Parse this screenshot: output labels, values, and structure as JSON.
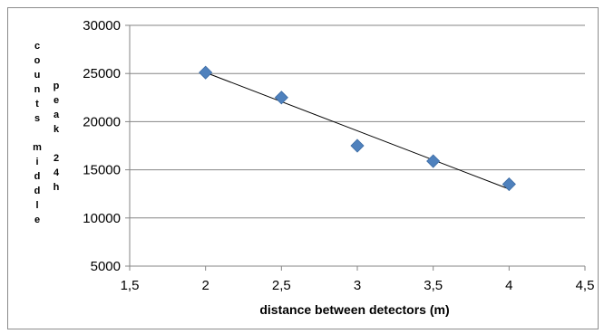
{
  "chart_data": {
    "type": "scatter",
    "title": "",
    "xlabel": "distance between detectors (m)",
    "ylabel_parts": [
      "counts middle",
      "peak 24h"
    ],
    "xlim": [
      1.5,
      4.5
    ],
    "ylim": [
      5000,
      30000
    ],
    "x_ticks": [
      "1,5",
      "2",
      "2,5",
      "3",
      "3,5",
      "4",
      "4,5"
    ],
    "y_ticks": [
      "5000",
      "10000",
      "15000",
      "20000",
      "25000",
      "30000"
    ],
    "grid": true,
    "legend": "none",
    "marker_color": "#4f81bd",
    "series": [
      {
        "points": [
          {
            "x": 2.0,
            "y": 25100
          },
          {
            "x": 2.5,
            "y": 22500
          },
          {
            "x": 3.0,
            "y": 17500
          },
          {
            "x": 3.5,
            "y": 15900
          },
          {
            "x": 4.0,
            "y": 13500
          }
        ],
        "trendline": {
          "type": "linear",
          "from": {
            "x": 2.0,
            "y": 25100
          },
          "to": {
            "x": 4.0,
            "y": 13000
          }
        }
      }
    ]
  }
}
